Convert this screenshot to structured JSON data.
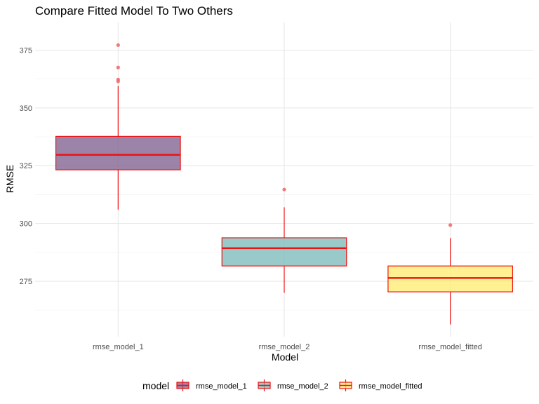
{
  "chart_data": {
    "type": "box",
    "title": "Compare Fitted Model To Two Others",
    "xlabel": "Model",
    "ylabel": "RMSE",
    "categories": [
      "rmse_model_1",
      "rmse_model_2",
      "rmse_model_fitted"
    ],
    "ylim": [
      251,
      387
    ],
    "yticks": [
      275,
      300,
      325,
      350,
      375
    ],
    "grid": true,
    "legend": {
      "title": "model",
      "position": "bottom",
      "entries": [
        "rmse_model_1",
        "rmse_model_2",
        "rmse_model_fitted"
      ]
    },
    "boxes": [
      {
        "name": "rmse_model_1",
        "fill": "#7b5b8c",
        "whisker_low": 306,
        "q1": 323.2,
        "median": 329.7,
        "q3": 337.7,
        "whisker_high": 359.5,
        "outliers": [
          377.2,
          367.5,
          362.3,
          361.5
        ]
      },
      {
        "name": "rmse_model_2",
        "fill": "#77b7b5",
        "whisker_low": 270,
        "q1": 281.6,
        "median": 289.3,
        "q3": 293.8,
        "whisker_high": 307,
        "outliers": [
          314.7
        ]
      },
      {
        "name": "rmse_model_fitted",
        "fill": "#ffec6e",
        "whisker_low": 256.3,
        "q1": 270.4,
        "median": 276.4,
        "q3": 281.6,
        "whisker_high": 293.7,
        "outliers": [
          299.3
        ]
      }
    ],
    "outline_color": "#ee1111",
    "outlier_color": "#f06a6a",
    "fill_opacity": 0.75
  }
}
